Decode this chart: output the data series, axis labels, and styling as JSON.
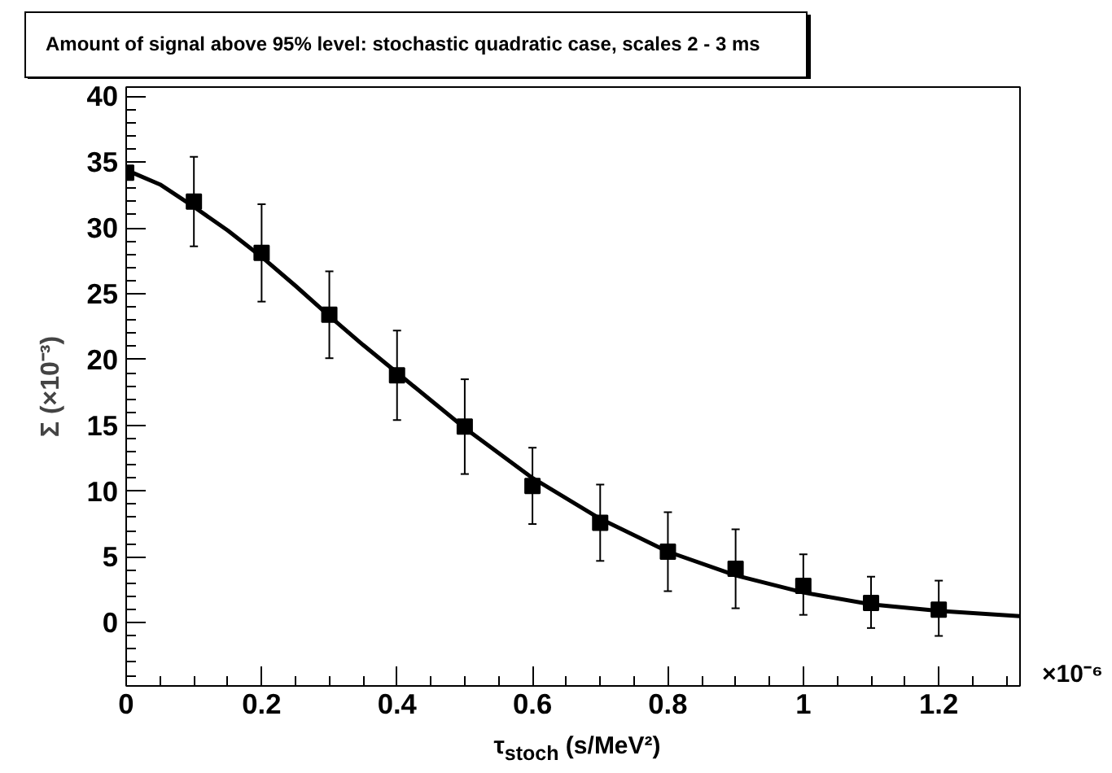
{
  "chart_data": {
    "type": "scatter",
    "title": "Amount of signal above 95% level: stochastic quadratic case, scales 2 - 3 ms",
    "xlabel": "τ$_{stoch}$ (s/MeV²)",
    "ylabel": "Σ (×10⁻³)",
    "annotations": [
      "×10⁻⁶"
    ],
    "series": [
      {
        "color": "#000000",
        "marker": "square",
        "x": [
          0,
          0.1,
          0.2,
          0.3,
          0.4,
          0.5,
          0.6,
          0.7,
          0.8,
          0.9,
          1.0,
          1.1,
          1.2
        ],
        "values": [
          34.2,
          32.0,
          28.1,
          23.4,
          18.8,
          14.9,
          10.4,
          7.6,
          5.4,
          4.1,
          2.8,
          1.5,
          1.0
        ],
        "errors": [
          null,
          3.4,
          3.7,
          3.3,
          3.4,
          3.6,
          2.9,
          2.9,
          3.0,
          3.0,
          [
            0.6,
            5.2
          ],
          [
            -0.4,
            3.5
          ],
          [
            -1.0,
            3.2
          ]
        ]
      },
      {
        "type": "line",
        "color": "#000000",
        "marker": "none",
        "x": [
          0,
          0.05,
          0.1,
          0.15,
          0.2,
          0.25,
          0.3,
          0.35,
          0.4,
          0.45,
          0.5,
          0.6,
          0.7,
          0.8,
          0.9,
          1.0,
          1.1,
          1.2,
          1.32
        ],
        "values": [
          34.4,
          33.3,
          31.6,
          29.8,
          27.8,
          25.6,
          23.3,
          21.1,
          19.0,
          16.9,
          14.8,
          11.0,
          7.9,
          5.4,
          3.6,
          2.3,
          1.4,
          0.9,
          0.5
        ]
      }
    ],
    "xlim": [
      0,
      1.32
    ],
    "xticks": [
      0,
      0.2,
      0.4,
      0.6,
      0.8,
      1,
      1.2
    ],
    "ylim": [
      -4.8,
      40.7
    ],
    "yticks": [
      0,
      5,
      10,
      15,
      20,
      25,
      30,
      35,
      40
    ],
    "grid": false
  }
}
